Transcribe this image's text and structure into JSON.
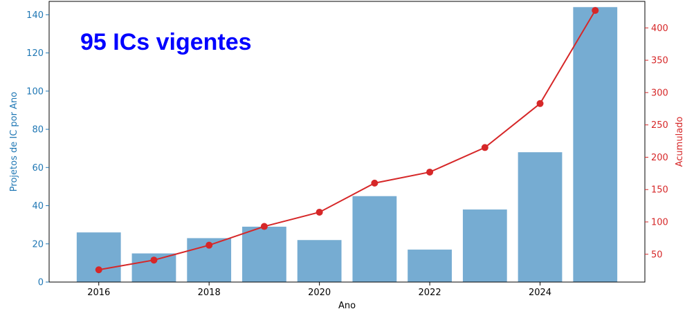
{
  "chart_data": {
    "type": "bar",
    "categories": [
      "2016",
      "2017",
      "2018",
      "2019",
      "2020",
      "2021",
      "2022",
      "2023",
      "2024",
      "2025"
    ],
    "x": [
      2016,
      2017,
      2018,
      2019,
      2020,
      2021,
      2022,
      2023,
      2024,
      2025
    ],
    "series": [
      {
        "values": [
          26,
          15,
          23,
          29,
          22,
          45,
          17,
          38,
          68,
          144
        ],
        "axis": "left",
        "type": "bar",
        "color": "#76acd2"
      },
      {
        "values": [
          26,
          41,
          64,
          93,
          115,
          160,
          177,
          215,
          283,
          427
        ],
        "axis": "right",
        "type": "line",
        "color": "#d62728"
      }
    ],
    "xlabel": "Ano",
    "ylabel": "Projetos de IC por Ano",
    "ylabel_right": "Acumulado",
    "xlim": [
      2015.1,
      2025.9
    ],
    "ylim": [
      0,
      147
    ],
    "ylim_right": [
      7,
      441
    ],
    "xticks": [
      2016,
      2018,
      2020,
      2022,
      2024
    ],
    "yticks": [
      0,
      20,
      40,
      60,
      80,
      100,
      120,
      140
    ],
    "yticks_right": [
      50,
      100,
      150,
      200,
      250,
      300,
      350,
      400
    ],
    "annotation": "95 ICs vigentes",
    "colors": {
      "left_axis": "#1f77b4",
      "right_axis": "#d62728",
      "annotation": "#0000ff"
    }
  }
}
